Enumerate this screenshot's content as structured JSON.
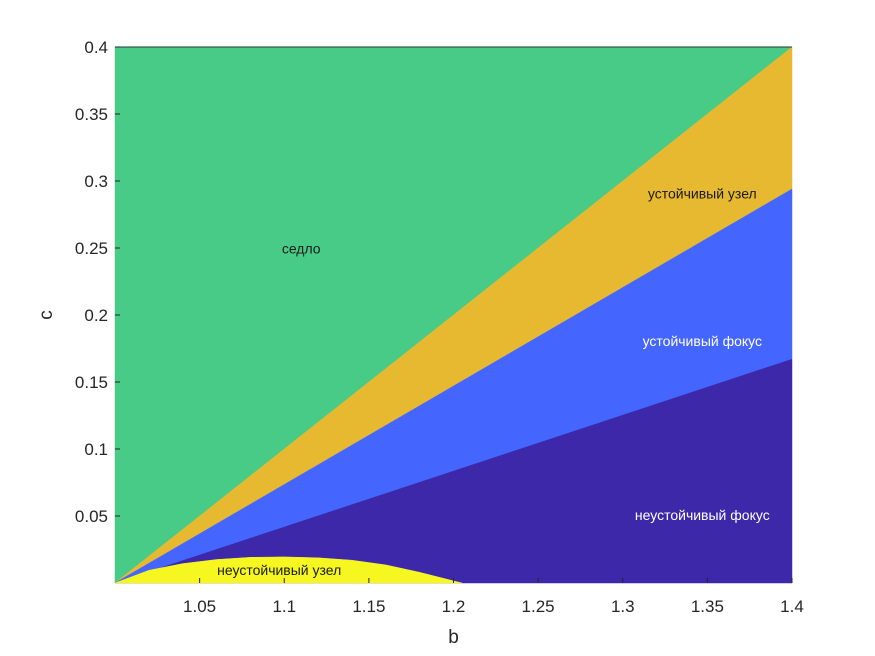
{
  "chart_data": {
    "type": "area",
    "xlabel": "b",
    "ylabel": "c",
    "xlim": [
      1.0,
      1.4
    ],
    "ylim": [
      0.0,
      0.4
    ],
    "xticks": [
      1.05,
      1.1,
      1.15,
      1.2,
      1.25,
      1.3,
      1.35,
      1.4
    ],
    "xtick_labels": [
      "1.05",
      "1.1",
      "1.15",
      "1.2",
      "1.25",
      "1.3",
      "1.35",
      "1.4"
    ],
    "yticks": [
      0.05,
      0.1,
      0.15,
      0.2,
      0.25,
      0.3,
      0.35,
      0.4
    ],
    "ytick_labels": [
      "0.05",
      "0.1",
      "0.15",
      "0.2",
      "0.25",
      "0.3",
      "0.35",
      "0.4"
    ],
    "grid": false,
    "regions": [
      {
        "name": "седло",
        "color": "#48CB87",
        "label_at": [
          1.11,
          0.246
        ],
        "label_color": "#1a1a1a",
        "boundary_points": [
          [
            1.0,
            0.0
          ],
          [
            1.0,
            0.4
          ],
          [
            1.4,
            0.4
          ]
        ]
      },
      {
        "name": "устойчивый узел",
        "color": "#E7B931",
        "label_at": [
          1.347,
          0.287
        ],
        "label_color": "#1a1a1a",
        "boundary_points": [
          [
            1.0,
            0.0
          ],
          [
            1.4,
            0.4
          ],
          [
            1.4,
            0.294
          ]
        ]
      },
      {
        "name": "устойчивый фокус",
        "color": "#4466FF",
        "label_at": [
          1.347,
          0.177
        ],
        "label_color": "#ffffff",
        "boundary_points": [
          [
            1.0,
            0.0
          ],
          [
            1.4,
            0.294
          ],
          [
            1.4,
            0.167
          ]
        ]
      },
      {
        "name": "неустойчивый фокус",
        "color": "#3C28A8",
        "label_at": [
          1.347,
          0.047
        ],
        "label_color": "#ffffff",
        "boundary_points": [
          [
            1.0,
            0.0
          ],
          [
            1.4,
            0.167
          ],
          [
            1.4,
            0.0
          ]
        ]
      },
      {
        "name": "неустойчивый узел",
        "color": "#F6F621",
        "label_at": [
          1.097,
          0.006
        ],
        "label_color": "#1a1a1a",
        "boundary_points": [
          [
            1.0,
            0.0
          ],
          [
            1.02,
            0.0095
          ],
          [
            1.04,
            0.0145
          ],
          [
            1.06,
            0.0175
          ],
          [
            1.08,
            0.0192
          ],
          [
            1.1,
            0.0195
          ],
          [
            1.12,
            0.0188
          ],
          [
            1.14,
            0.017
          ],
          [
            1.16,
            0.0135
          ],
          [
            1.18,
            0.008
          ],
          [
            1.205,
            0.0
          ]
        ]
      }
    ]
  }
}
